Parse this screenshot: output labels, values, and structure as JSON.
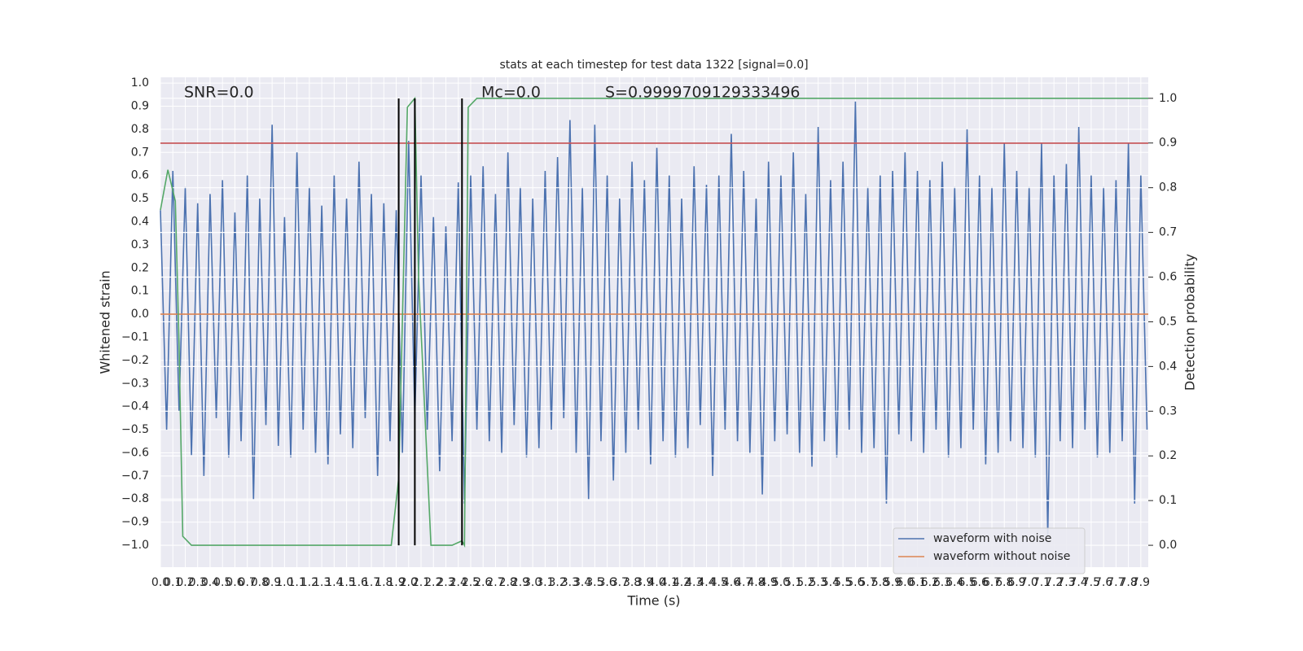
{
  "chart_data": {
    "type": "line",
    "title": "stats at each timestep for test data 1322 [signal=0.0]",
    "xlabel": "Time (s)",
    "ylabel": "Whitened strain",
    "y2label": "Detection probability",
    "annotations": [
      "SNR=0.0",
      "Mc=0.0",
      "S=0.9999709129333496"
    ],
    "xlim": [
      0,
      7.96
    ],
    "ylim": [
      -1.095,
      1.025
    ],
    "y2lim": [
      -0.049,
      1.047
    ],
    "grid": true,
    "legend": "lower right",
    "xticks": [
      {
        "value": 0,
        "label": "0.0"
      },
      {
        "value": 0.1,
        "label": "0.1"
      },
      {
        "value": 0.2,
        "label": "0.2"
      },
      {
        "value": 0.3,
        "label": "0.3"
      },
      {
        "value": 0.4,
        "label": "0.4"
      },
      {
        "value": 0.5,
        "label": "0.5"
      },
      {
        "value": 0.6,
        "label": "0.6"
      },
      {
        "value": 0.7,
        "label": "0.7"
      },
      {
        "value": 0.8,
        "label": "0.8"
      },
      {
        "value": 0.9,
        "label": "0.9"
      },
      {
        "value": 1,
        "label": "1.0"
      },
      {
        "value": 1.1,
        "label": "1.1"
      },
      {
        "value": 1.2,
        "label": "1.2"
      },
      {
        "value": 1.3,
        "label": "1.3"
      },
      {
        "value": 1.4,
        "label": "1.4"
      },
      {
        "value": 1.5,
        "label": "1.5"
      },
      {
        "value": 1.6,
        "label": "1.6"
      },
      {
        "value": 1.7,
        "label": "1.7"
      },
      {
        "value": 1.8,
        "label": "1.8"
      },
      {
        "value": 1.9,
        "label": "1.9"
      },
      {
        "value": 2,
        "label": "2.0"
      },
      {
        "value": 2.1,
        "label": "2.1"
      },
      {
        "value": 2.2,
        "label": "2.2"
      },
      {
        "value": 2.3,
        "label": "2.3"
      },
      {
        "value": 2.4,
        "label": "2.4"
      },
      {
        "value": 2.5,
        "label": "2.5"
      },
      {
        "value": 2.6,
        "label": "2.6"
      },
      {
        "value": 2.7,
        "label": "2.7"
      },
      {
        "value": 2.8,
        "label": "2.8"
      },
      {
        "value": 2.9,
        "label": "2.9"
      },
      {
        "value": 3,
        "label": "3.0"
      },
      {
        "value": 3.1,
        "label": "3.1"
      },
      {
        "value": 3.2,
        "label": "3.2"
      },
      {
        "value": 3.3,
        "label": "3.3"
      },
      {
        "value": 3.4,
        "label": "3.4"
      },
      {
        "value": 3.5,
        "label": "3.5"
      },
      {
        "value": 3.6,
        "label": "3.6"
      },
      {
        "value": 3.7,
        "label": "3.7"
      },
      {
        "value": 3.8,
        "label": "3.8"
      },
      {
        "value": 3.9,
        "label": "3.9"
      },
      {
        "value": 4,
        "label": "4.0"
      },
      {
        "value": 4.1,
        "label": "4.1"
      },
      {
        "value": 4.2,
        "label": "4.2"
      },
      {
        "value": 4.3,
        "label": "4.3"
      },
      {
        "value": 4.4,
        "label": "4.4"
      },
      {
        "value": 4.5,
        "label": "4.5"
      },
      {
        "value": 4.6,
        "label": "4.6"
      },
      {
        "value": 4.7,
        "label": "4.7"
      },
      {
        "value": 4.8,
        "label": "4.8"
      },
      {
        "value": 4.9,
        "label": "4.9"
      },
      {
        "value": 5,
        "label": "5.0"
      },
      {
        "value": 5.1,
        "label": "5.1"
      },
      {
        "value": 5.2,
        "label": "5.2"
      },
      {
        "value": 5.3,
        "label": "5.3"
      },
      {
        "value": 5.4,
        "label": "5.4"
      },
      {
        "value": 5.5,
        "label": "5.5"
      },
      {
        "value": 5.6,
        "label": "5.6"
      },
      {
        "value": 5.7,
        "label": "5.7"
      },
      {
        "value": 5.8,
        "label": "5.8"
      },
      {
        "value": 5.9,
        "label": "5.9"
      },
      {
        "value": 6,
        "label": "6.0"
      },
      {
        "value": 6.1,
        "label": "6.1"
      },
      {
        "value": 6.2,
        "label": "6.2"
      },
      {
        "value": 6.3,
        "label": "6.3"
      },
      {
        "value": 6.4,
        "label": "6.4"
      },
      {
        "value": 6.5,
        "label": "6.5"
      },
      {
        "value": 6.6,
        "label": "6.6"
      },
      {
        "value": 6.7,
        "label": "6.7"
      },
      {
        "value": 6.8,
        "label": "6.8"
      },
      {
        "value": 6.9,
        "label": "6.9"
      },
      {
        "value": 7,
        "label": "7.0"
      },
      {
        "value": 7.1,
        "label": "7.1"
      },
      {
        "value": 7.2,
        "label": "7.2"
      },
      {
        "value": 7.3,
        "label": "7.3"
      },
      {
        "value": 7.4,
        "label": "7.4"
      },
      {
        "value": 7.5,
        "label": "7.5"
      },
      {
        "value": 7.6,
        "label": "7.6"
      },
      {
        "value": 7.7,
        "label": "7.7"
      },
      {
        "value": 7.8,
        "label": "7.8"
      },
      {
        "value": 7.9,
        "label": "7.9"
      }
    ],
    "yticks": [
      {
        "value": -1,
        "label": "−1.0"
      },
      {
        "value": -0.9,
        "label": "−0.9"
      },
      {
        "value": -0.8,
        "label": "−0.8"
      },
      {
        "value": -0.7,
        "label": "−0.7"
      },
      {
        "value": -0.6,
        "label": "−0.6"
      },
      {
        "value": -0.5,
        "label": "−0.5"
      },
      {
        "value": -0.4,
        "label": "−0.4"
      },
      {
        "value": -0.3,
        "label": "−0.3"
      },
      {
        "value": -0.2,
        "label": "−0.2"
      },
      {
        "value": -0.1,
        "label": "−0.1"
      },
      {
        "value": 0,
        "label": "0.0"
      },
      {
        "value": 0.1,
        "label": "0.1"
      },
      {
        "value": 0.2,
        "label": "0.2"
      },
      {
        "value": 0.3,
        "label": "0.3"
      },
      {
        "value": 0.4,
        "label": "0.4"
      },
      {
        "value": 0.5,
        "label": "0.5"
      },
      {
        "value": 0.6,
        "label": "0.6"
      },
      {
        "value": 0.7,
        "label": "0.7"
      },
      {
        "value": 0.8,
        "label": "0.8"
      },
      {
        "value": 0.9,
        "label": "0.9"
      },
      {
        "value": 1,
        "label": "1.0"
      }
    ],
    "y2ticks": [
      {
        "value": 0,
        "label": "0.0"
      },
      {
        "value": 0.1,
        "label": "0.1"
      },
      {
        "value": 0.2,
        "label": "0.2"
      },
      {
        "value": 0.3,
        "label": "0.3"
      },
      {
        "value": 0.4,
        "label": "0.4"
      },
      {
        "value": 0.5,
        "label": "0.5"
      },
      {
        "value": 0.6,
        "label": "0.6"
      },
      {
        "value": 0.7,
        "label": "0.7"
      },
      {
        "value": 0.8,
        "label": "0.8"
      },
      {
        "value": 0.9,
        "label": "0.9"
      },
      {
        "value": 1,
        "label": "1.0"
      }
    ],
    "hline": {
      "value": 0.74,
      "color": "#c44e52"
    },
    "vlines": [
      1.92,
      2.05,
      2.43
    ],
    "vline_color": "#000000",
    "series": [
      {
        "name": "waveform with noise",
        "color": "#4c72b0",
        "x": [
          0,
          0.05,
          0.1,
          0.15,
          0.2,
          0.25,
          0.3,
          0.35,
          0.4,
          0.45,
          0.5,
          0.55,
          0.6,
          0.65,
          0.7,
          0.75,
          0.8,
          0.85,
          0.9,
          0.95,
          1,
          1.05,
          1.1,
          1.15,
          1.2,
          1.25,
          1.3,
          1.35,
          1.4,
          1.45,
          1.5,
          1.55,
          1.6,
          1.65,
          1.7,
          1.75,
          1.8,
          1.85,
          1.9,
          1.95,
          2,
          2.05,
          2.1,
          2.15,
          2.2,
          2.25,
          2.3,
          2.35,
          2.4,
          2.45,
          2.5,
          2.55,
          2.6,
          2.65,
          2.7,
          2.75,
          2.8,
          2.85,
          2.9,
          2.95,
          3,
          3.05,
          3.1,
          3.15,
          3.2,
          3.25,
          3.3,
          3.35,
          3.4,
          3.45,
          3.5,
          3.55,
          3.6,
          3.65,
          3.7,
          3.75,
          3.8,
          3.85,
          3.9,
          3.95,
          4,
          4.05,
          4.1,
          4.15,
          4.2,
          4.25,
          4.3,
          4.35,
          4.4,
          4.45,
          4.5,
          4.55,
          4.6,
          4.65,
          4.7,
          4.75,
          4.8,
          4.85,
          4.9,
          4.95,
          5,
          5.05,
          5.1,
          5.15,
          5.2,
          5.25,
          5.3,
          5.35,
          5.4,
          5.45,
          5.5,
          5.55,
          5.6,
          5.65,
          5.7,
          5.75,
          5.8,
          5.85,
          5.9,
          5.95,
          6,
          6.05,
          6.1,
          6.15,
          6.2,
          6.25,
          6.3,
          6.35,
          6.4,
          6.45,
          6.5,
          6.55,
          6.6,
          6.65,
          6.7,
          6.75,
          6.8,
          6.85,
          6.9,
          6.95,
          7,
          7.05,
          7.1,
          7.15,
          7.2,
          7.25,
          7.3,
          7.35,
          7.4,
          7.45,
          7.5,
          7.55,
          7.6,
          7.65,
          7.7,
          7.75,
          7.8,
          7.85,
          7.9,
          7.95
        ],
        "values": [
          0.45,
          -0.5,
          0.62,
          -0.42,
          0.55,
          -0.61,
          0.48,
          -0.7,
          0.52,
          -0.45,
          0.58,
          -0.62,
          0.44,
          -0.55,
          0.6,
          -0.8,
          0.5,
          -0.48,
          0.82,
          -0.57,
          0.42,
          -0.62,
          0.7,
          -0.5,
          0.55,
          -0.6,
          0.47,
          -0.65,
          0.6,
          -0.52,
          0.5,
          -0.58,
          0.66,
          -0.45,
          0.52,
          -0.7,
          0.48,
          -0.55,
          0.45,
          -0.6,
          0.75,
          -0.45,
          0.6,
          -0.5,
          0.42,
          -0.68,
          0.38,
          -0.55,
          0.57,
          -0.82,
          0.6,
          -0.5,
          0.64,
          -0.55,
          0.52,
          -0.6,
          0.7,
          -0.48,
          0.55,
          -0.62,
          0.5,
          -0.58,
          0.62,
          -0.5,
          0.68,
          -0.45,
          0.84,
          -0.6,
          0.55,
          -0.8,
          0.82,
          -0.55,
          0.6,
          -0.72,
          0.5,
          -0.6,
          0.66,
          -0.5,
          0.58,
          -0.65,
          0.72,
          -0.55,
          0.6,
          -0.62,
          0.5,
          -0.58,
          0.64,
          -0.48,
          0.56,
          -0.7,
          0.6,
          -0.5,
          0.78,
          -0.55,
          0.62,
          -0.6,
          0.5,
          -0.78,
          0.66,
          -0.55,
          0.6,
          -0.52,
          0.7,
          -0.6,
          0.52,
          -0.66,
          0.81,
          -0.55,
          0.58,
          -0.62,
          0.66,
          -0.5,
          0.92,
          -0.6,
          0.55,
          -0.58,
          0.6,
          -0.82,
          0.62,
          -0.52,
          0.7,
          -0.55,
          0.62,
          -0.6,
          0.58,
          -0.5,
          0.66,
          -0.62,
          0.55,
          -0.58,
          0.8,
          -0.5,
          0.6,
          -0.65,
          0.55,
          -0.6,
          0.74,
          -0.55,
          0.62,
          -0.58,
          0.55,
          -0.62,
          0.74,
          -0.96,
          0.6,
          -0.55,
          0.65,
          -0.58,
          0.81,
          -0.5,
          0.6,
          -0.62,
          0.55,
          -0.6,
          0.58,
          -0.55,
          0.74,
          -0.82,
          0.6,
          -0.5
        ]
      },
      {
        "name": "waveform without noise",
        "color": "#dd8452",
        "x": [
          0,
          7.96
        ],
        "values": [
          0,
          0
        ]
      },
      {
        "color": "#55a868",
        "axis": "y2",
        "x": [
          0,
          0.06,
          0.12,
          0.15,
          0.18,
          0.25,
          1.86,
          1.92,
          1.99,
          2.05,
          2.08,
          2.18,
          2.35,
          2.43,
          2.45,
          2.48,
          2.55,
          7.96
        ],
        "values": [
          0.75,
          0.84,
          0.77,
          0.45,
          0.02,
          0,
          0,
          0.15,
          0.98,
          1,
          0.6,
          0,
          0,
          0.01,
          0,
          0.98,
          1,
          1
        ]
      }
    ]
  }
}
